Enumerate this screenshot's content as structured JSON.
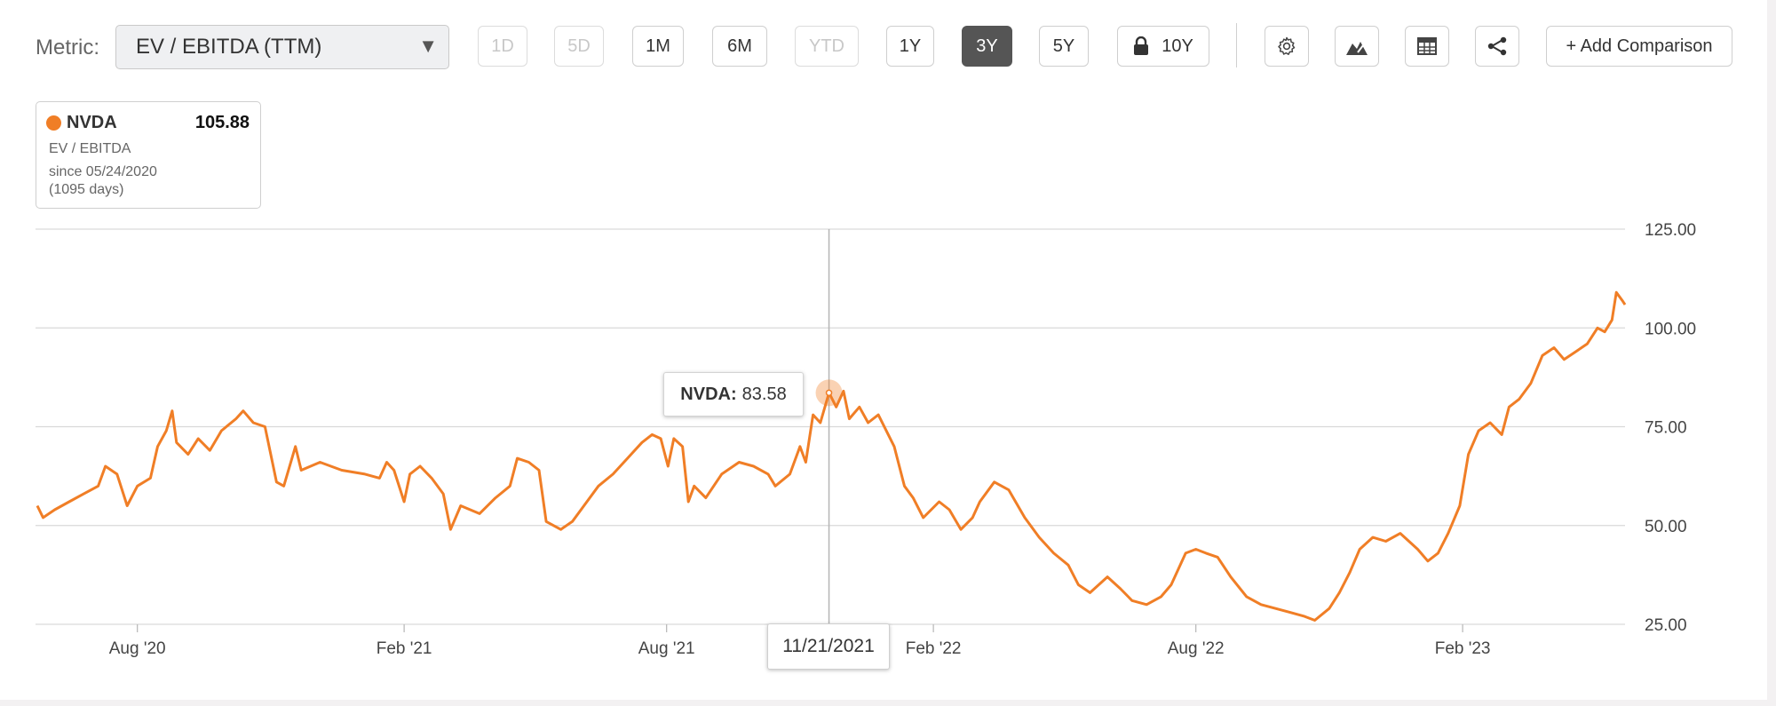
{
  "toolbar": {
    "metric_label": "Metric:",
    "metric_value": "EV / EBITDA (TTM)",
    "ranges": [
      {
        "label": "1D",
        "state": "disabled"
      },
      {
        "label": "5D",
        "state": "disabled"
      },
      {
        "label": "1M",
        "state": "normal"
      },
      {
        "label": "6M",
        "state": "normal"
      },
      {
        "label": "YTD",
        "state": "disabled"
      },
      {
        "label": "1Y",
        "state": "normal"
      },
      {
        "label": "3Y",
        "state": "active"
      },
      {
        "label": "5Y",
        "state": "normal"
      },
      {
        "label": "10Y",
        "state": "locked"
      }
    ],
    "icons": [
      "gear-icon",
      "mountain-chart-icon",
      "table-icon",
      "share-icon"
    ],
    "add_comparison": "+ Add Comparison"
  },
  "legend": {
    "ticker": "NVDA",
    "value": "105.88",
    "metric": "EV / EBITDA",
    "since": "since 05/24/2020",
    "days": "(1095 days)",
    "color": "#f07e26"
  },
  "tooltip": {
    "ticker": "NVDA:",
    "value": "83.58",
    "date": "11/21/2021"
  },
  "chart_data": {
    "type": "line",
    "x_start": "2020-05-24",
    "x_end": "2023-05-24",
    "ylim": [
      25,
      125
    ],
    "y_ticks": [
      "125.00",
      "100.00",
      "75.00",
      "50.00",
      "25.00"
    ],
    "x_ticks": [
      {
        "date": "2020-08-01",
        "label": "Aug '20"
      },
      {
        "date": "2021-02-01",
        "label": "Feb '21"
      },
      {
        "date": "2021-08-01",
        "label": "Aug '21"
      },
      {
        "date": "2022-02-01",
        "label": "Feb '22"
      },
      {
        "date": "2022-08-01",
        "label": "Aug '22"
      },
      {
        "date": "2023-02-01",
        "label": "Feb '23"
      }
    ],
    "grid": true,
    "series": [
      {
        "color": "#f07e26",
        "points": [
          [
            "2020-05-24",
            55
          ],
          [
            "2020-05-28",
            52
          ],
          [
            "2020-06-05",
            54
          ],
          [
            "2020-06-15",
            56
          ],
          [
            "2020-06-25",
            58
          ],
          [
            "2020-07-05",
            60
          ],
          [
            "2020-07-10",
            65
          ],
          [
            "2020-07-18",
            63
          ],
          [
            "2020-07-25",
            55
          ],
          [
            "2020-08-01",
            60
          ],
          [
            "2020-08-10",
            62
          ],
          [
            "2020-08-15",
            70
          ],
          [
            "2020-08-21",
            74
          ],
          [
            "2020-08-25",
            79
          ],
          [
            "2020-08-28",
            71
          ],
          [
            "2020-09-05",
            68
          ],
          [
            "2020-09-12",
            72
          ],
          [
            "2020-09-20",
            69
          ],
          [
            "2020-09-28",
            74
          ],
          [
            "2020-10-08",
            77
          ],
          [
            "2020-10-13",
            79
          ],
          [
            "2020-10-20",
            76
          ],
          [
            "2020-10-28",
            75
          ],
          [
            "2020-11-05",
            61
          ],
          [
            "2020-11-10",
            60
          ],
          [
            "2020-11-18",
            70
          ],
          [
            "2020-11-22",
            64
          ],
          [
            "2020-12-05",
            66
          ],
          [
            "2020-12-20",
            64
          ],
          [
            "2021-01-05",
            63
          ],
          [
            "2021-01-15",
            62
          ],
          [
            "2021-01-20",
            66
          ],
          [
            "2021-01-25",
            64
          ],
          [
            "2021-02-01",
            56
          ],
          [
            "2021-02-05",
            63
          ],
          [
            "2021-02-12",
            65
          ],
          [
            "2021-02-20",
            62
          ],
          [
            "2021-02-28",
            58
          ],
          [
            "2021-03-05",
            49
          ],
          [
            "2021-03-12",
            55
          ],
          [
            "2021-03-25",
            53
          ],
          [
            "2021-04-05",
            57
          ],
          [
            "2021-04-15",
            60
          ],
          [
            "2021-04-20",
            67
          ],
          [
            "2021-04-28",
            66
          ],
          [
            "2021-05-05",
            64
          ],
          [
            "2021-05-10",
            51
          ],
          [
            "2021-05-20",
            49
          ],
          [
            "2021-05-28",
            51
          ],
          [
            "2021-06-05",
            55
          ],
          [
            "2021-06-15",
            60
          ],
          [
            "2021-06-25",
            63
          ],
          [
            "2021-07-05",
            67
          ],
          [
            "2021-07-15",
            71
          ],
          [
            "2021-07-22",
            73
          ],
          [
            "2021-07-28",
            72
          ],
          [
            "2021-08-02",
            65
          ],
          [
            "2021-08-06",
            72
          ],
          [
            "2021-08-12",
            70
          ],
          [
            "2021-08-16",
            56
          ],
          [
            "2021-08-20",
            60
          ],
          [
            "2021-08-28",
            57
          ],
          [
            "2021-09-08",
            63
          ],
          [
            "2021-09-20",
            66
          ],
          [
            "2021-09-30",
            65
          ],
          [
            "2021-10-10",
            63
          ],
          [
            "2021-10-15",
            60
          ],
          [
            "2021-10-25",
            63
          ],
          [
            "2021-11-01",
            70
          ],
          [
            "2021-11-05",
            66
          ],
          [
            "2021-11-10",
            78
          ],
          [
            "2021-11-15",
            76
          ],
          [
            "2021-11-21",
            83.58
          ],
          [
            "2021-11-26",
            80
          ],
          [
            "2021-12-01",
            84
          ],
          [
            "2021-12-05",
            77
          ],
          [
            "2021-12-12",
            80
          ],
          [
            "2021-12-18",
            76
          ],
          [
            "2021-12-25",
            78
          ],
          [
            "2022-01-05",
            70
          ],
          [
            "2022-01-12",
            60
          ],
          [
            "2022-01-18",
            57
          ],
          [
            "2022-01-25",
            52
          ],
          [
            "2022-02-05",
            56
          ],
          [
            "2022-02-12",
            54
          ],
          [
            "2022-02-20",
            49
          ],
          [
            "2022-02-28",
            52
          ],
          [
            "2022-03-05",
            56
          ],
          [
            "2022-03-15",
            61
          ],
          [
            "2022-03-25",
            59
          ],
          [
            "2022-04-05",
            52
          ],
          [
            "2022-04-15",
            47
          ],
          [
            "2022-04-25",
            43
          ],
          [
            "2022-05-05",
            40
          ],
          [
            "2022-05-12",
            35
          ],
          [
            "2022-05-20",
            33
          ],
          [
            "2022-06-01",
            37
          ],
          [
            "2022-06-10",
            34
          ],
          [
            "2022-06-18",
            31
          ],
          [
            "2022-06-28",
            30
          ],
          [
            "2022-07-08",
            32
          ],
          [
            "2022-07-15",
            35
          ],
          [
            "2022-07-25",
            43
          ],
          [
            "2022-08-01",
            44
          ],
          [
            "2022-08-08",
            43
          ],
          [
            "2022-08-16",
            42
          ],
          [
            "2022-08-25",
            37
          ],
          [
            "2022-09-05",
            32
          ],
          [
            "2022-09-15",
            30
          ],
          [
            "2022-09-25",
            29
          ],
          [
            "2022-10-05",
            28
          ],
          [
            "2022-10-15",
            27
          ],
          [
            "2022-10-22",
            26
          ],
          [
            "2022-11-01",
            29
          ],
          [
            "2022-11-08",
            33
          ],
          [
            "2022-11-15",
            38
          ],
          [
            "2022-11-22",
            44
          ],
          [
            "2022-12-01",
            47
          ],
          [
            "2022-12-10",
            46
          ],
          [
            "2022-12-20",
            48
          ],
          [
            "2023-01-01",
            44
          ],
          [
            "2023-01-08",
            41
          ],
          [
            "2023-01-15",
            43
          ],
          [
            "2023-01-22",
            48
          ],
          [
            "2023-01-30",
            55
          ],
          [
            "2023-02-05",
            68
          ],
          [
            "2023-02-12",
            74
          ],
          [
            "2023-02-20",
            76
          ],
          [
            "2023-02-28",
            73
          ],
          [
            "2023-03-05",
            80
          ],
          [
            "2023-03-12",
            82
          ],
          [
            "2023-03-20",
            86
          ],
          [
            "2023-03-28",
            93
          ],
          [
            "2023-04-05",
            95
          ],
          [
            "2023-04-12",
            92
          ],
          [
            "2023-04-20",
            94
          ],
          [
            "2023-04-28",
            96
          ],
          [
            "2023-05-05",
            100
          ],
          [
            "2023-05-10",
            99
          ],
          [
            "2023-05-15",
            102
          ],
          [
            "2023-05-18",
            109
          ],
          [
            "2023-05-22",
            107
          ],
          [
            "2023-05-24",
            105.88
          ]
        ]
      }
    ]
  }
}
